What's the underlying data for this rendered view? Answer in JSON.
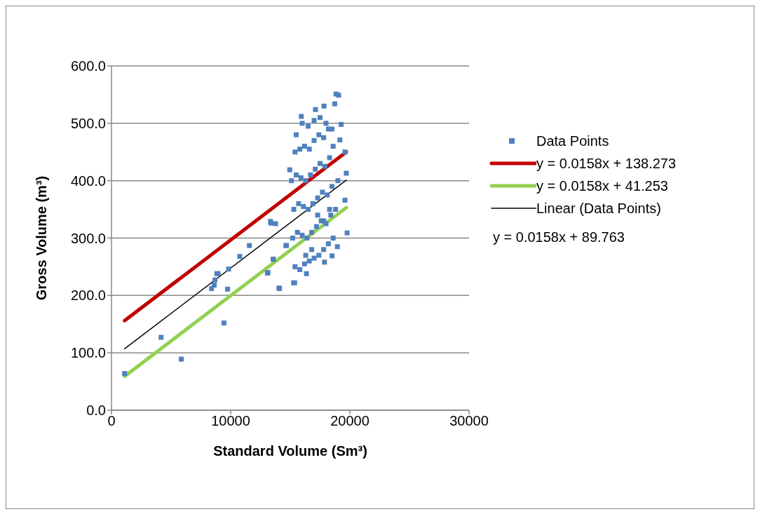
{
  "chart_data": {
    "type": "scatter",
    "xlabel": "Standard Volume (Sm³)",
    "ylabel": "Gross Volume (m³)",
    "xlim": [
      0,
      30000
    ],
    "xticks": [
      0,
      10000,
      20000,
      30000
    ],
    "ylim": [
      0,
      600
    ],
    "yticks": [
      {
        "value": 0,
        "label": "0.0"
      },
      {
        "value": 100,
        "label": "100.0"
      },
      {
        "value": 200,
        "label": "200.0"
      },
      {
        "value": 300,
        "label": "300.0"
      },
      {
        "value": 400,
        "label": "400.0"
      },
      {
        "value": 500,
        "label": "500.0"
      },
      {
        "value": 600,
        "label": "600.0"
      }
    ],
    "grid": "y",
    "legend": "right",
    "annotations": [
      "y = 0.0158x + 89.763"
    ],
    "series": [
      {
        "name": "Data Points",
        "marker": "square",
        "color": "#4f81bd",
        "x": [
          1100,
          4160,
          5860,
          9440,
          8400,
          8620,
          8690,
          8840,
          8950,
          9740,
          9830,
          10760,
          11570,
          13580,
          13080,
          14680,
          14050,
          15370,
          13380,
          13340,
          13770,
          14630,
          13560,
          13130,
          14100,
          15280,
          16360,
          17870,
          18510,
          18950,
          18840,
          19060,
          17830,
          18730,
          15930,
          17120,
          15500,
          19270,
          19160,
          19590,
          14960,
          19700,
          19590,
          19770,
          15400,
          15800,
          16200,
          16600,
          17000,
          17400,
          17800,
          18200,
          18600,
          15200,
          15600,
          16000,
          16400,
          16800,
          17200,
          17600,
          18000,
          18400,
          18800,
          15300,
          15700,
          16100,
          16500,
          16900,
          17300,
          17700,
          18100,
          18500,
          19000,
          15100,
          15500,
          15900,
          16300,
          16700,
          17100,
          17500,
          17900,
          18300,
          15400,
          15800,
          16200,
          16600,
          17000,
          17400,
          17800,
          18200,
          18600,
          16000,
          16500,
          17000,
          17500,
          18000,
          18500,
          16300,
          16800,
          17300,
          17800,
          18300
        ],
        "values": [
          64,
          127,
          89,
          152,
          212,
          218,
          227,
          238,
          238,
          211,
          246,
          268,
          287,
          263,
          239,
          287,
          213,
          222,
          326,
          329,
          325,
          287,
          263,
          240,
          212,
          222,
          238,
          258,
          269,
          285,
          551,
          549,
          530,
          534,
          512,
          524,
          480,
          498,
          471,
          450,
          419,
          413,
          366,
          309,
          250,
          245,
          255,
          260,
          265,
          270,
          280,
          290,
          300,
          300,
          310,
          305,
          300,
          310,
          320,
          330,
          325,
          340,
          350,
          350,
          360,
          355,
          350,
          360,
          370,
          380,
          375,
          390,
          400,
          400,
          410,
          405,
          400,
          410,
          420,
          430,
          425,
          440,
          450,
          455,
          460,
          455,
          470,
          480,
          475,
          490,
          460,
          500,
          495,
          505,
          510,
          500,
          490,
          270,
          280,
          340,
          330,
          350
        ]
      },
      {
        "name": "y = 0.0158x + 138.273",
        "type": "line",
        "marker": "none",
        "color": "#c00000",
        "x": [
          1100,
          19700
        ],
        "values": [
          156,
          450
        ]
      },
      {
        "name": "y = 0.0158x + 41.253",
        "type": "line",
        "marker": "none",
        "color": "#92d050",
        "x": [
          1100,
          19700
        ],
        "values": [
          59,
          353
        ]
      },
      {
        "name": "Linear (Data Points)",
        "type": "line",
        "marker": "none",
        "color": "#000000",
        "x": [
          1100,
          19700
        ],
        "values": [
          107,
          401
        ]
      }
    ]
  }
}
